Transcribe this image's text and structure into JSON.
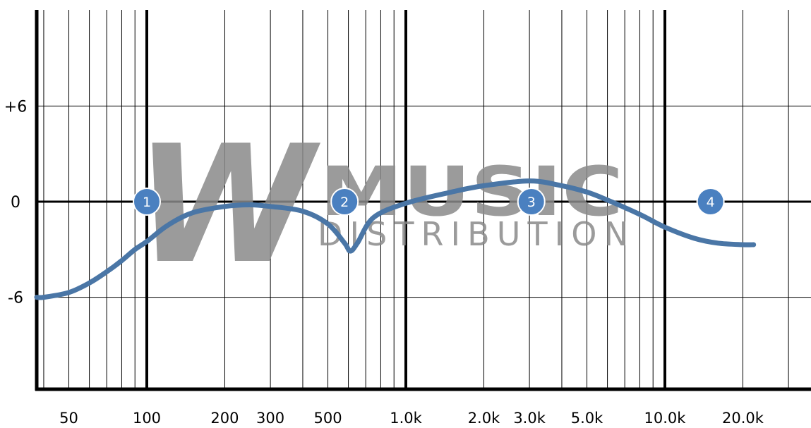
{
  "chart_data": {
    "type": "line",
    "title": "",
    "xlabel": "",
    "ylabel": "",
    "x_scale": "log",
    "xlim": [
      30,
      22000
    ],
    "ylim": [
      -12,
      10
    ],
    "grid": true,
    "y_ticks": [
      {
        "value": 6,
        "label": "+6"
      },
      {
        "value": 0,
        "label": "0"
      },
      {
        "value": -6,
        "label": "-6"
      }
    ],
    "x_ticks": [
      {
        "value": 50,
        "label": "50"
      },
      {
        "value": 100,
        "label": "100"
      },
      {
        "value": 200,
        "label": "200"
      },
      {
        "value": 300,
        "label": "300"
      },
      {
        "value": 500,
        "label": "500"
      },
      {
        "value": 1000,
        "label": "1.0k"
      },
      {
        "value": 2000,
        "label": "2.0k"
      },
      {
        "value": 3000,
        "label": "3.0k"
      },
      {
        "value": 5000,
        "label": "5.0k"
      },
      {
        "value": 10000,
        "label": "10.0k"
      },
      {
        "value": 20000,
        "label": "20.0k"
      }
    ],
    "series": [
      {
        "color": "#4a76a6",
        "x": [
          30,
          40,
          50,
          60,
          70,
          80,
          90,
          100,
          120,
          150,
          200,
          250,
          300,
          400,
          500,
          580,
          610,
          650,
          750,
          1000,
          1500,
          2000,
          3000,
          4000,
          5000,
          6000,
          8000,
          10000,
          13000,
          16000,
          20000,
          22000
        ],
        "y": [
          -6.0,
          -6.0,
          -5.7,
          -5.1,
          -4.4,
          -3.7,
          -3.0,
          -2.5,
          -1.5,
          -0.7,
          -0.3,
          -0.2,
          -0.3,
          -0.6,
          -1.4,
          -2.6,
          -3.1,
          -2.6,
          -1.0,
          -0.1,
          0.6,
          1.0,
          1.3,
          1.0,
          0.6,
          0.1,
          -0.8,
          -1.6,
          -2.3,
          -2.6,
          -2.7,
          -2.7
        ]
      }
    ],
    "bands": [
      {
        "label": "1",
        "freq": 100,
        "gain": 0
      },
      {
        "label": "2",
        "freq": 580,
        "gain": 0
      },
      {
        "label": "3",
        "freq": 3050,
        "gain": 0
      },
      {
        "label": "4",
        "freq": 15000,
        "gain": 0
      }
    ]
  },
  "watermark": {
    "logo_letter": "W",
    "word": "MUSIC",
    "subword": "DISTRIBUTION"
  }
}
